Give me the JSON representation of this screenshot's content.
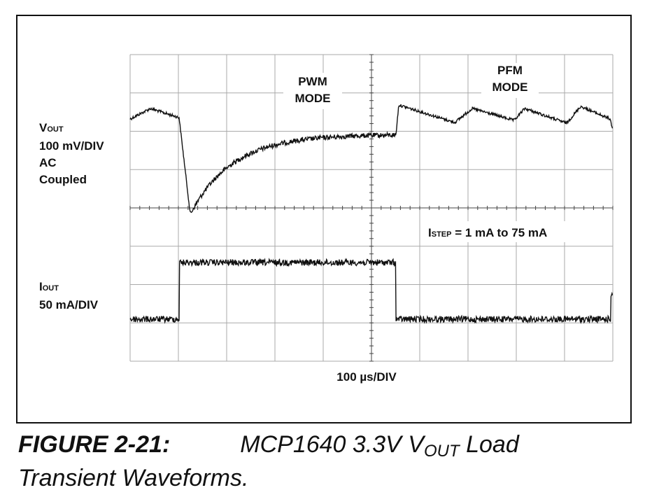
{
  "figure": {
    "pwm_mode": [
      "PWM",
      "MODE"
    ],
    "pfm_mode": [
      "PFM",
      "MODE"
    ],
    "vout_label": {
      "main": "V",
      "sub": "OUT",
      "lines": [
        "100 mV/DIV",
        "AC",
        "Coupled"
      ]
    },
    "iout_label": {
      "main": "I",
      "sub": "OUT",
      "lines": [
        "50 mA/DIV"
      ]
    },
    "istep_label": {
      "main": "I",
      "sub": "STEP",
      "rest": " = 1 mA to 75 mA"
    },
    "time_label": "100 µs/DIV",
    "caption": {
      "number": "FIGURE 2-21:",
      "text": "MCP1640 3.3V V",
      "sub": "OUT",
      "text_rest": " Load",
      "line2": "Transient Waveforms."
    }
  }
}
